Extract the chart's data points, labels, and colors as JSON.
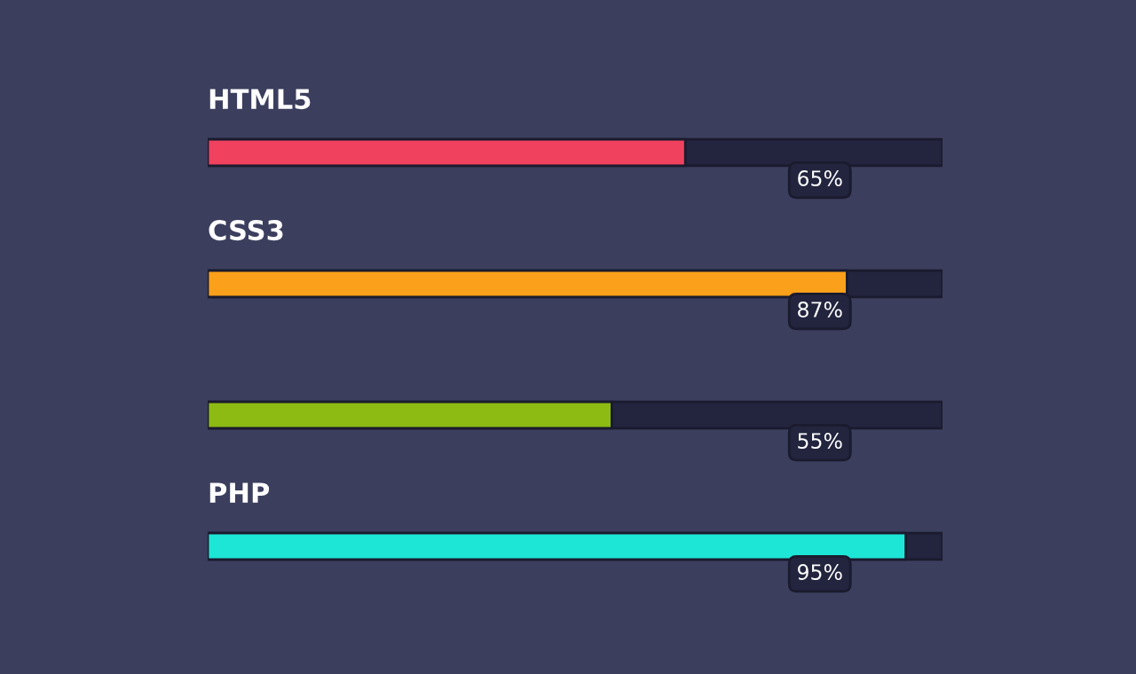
{
  "chart_data": {
    "type": "bar",
    "orientation": "horizontal",
    "categories": [
      "HTML5",
      "CSS3",
      null,
      "PHP"
    ],
    "values": [
      65,
      87,
      55,
      95
    ],
    "colors": [
      "#f0415f",
      "#fba01a",
      "#8dbb14",
      "#1de6d6"
    ],
    "value_labels": [
      "65%",
      "87%",
      "55%",
      "95%"
    ],
    "xlim": [
      0,
      100
    ]
  }
}
